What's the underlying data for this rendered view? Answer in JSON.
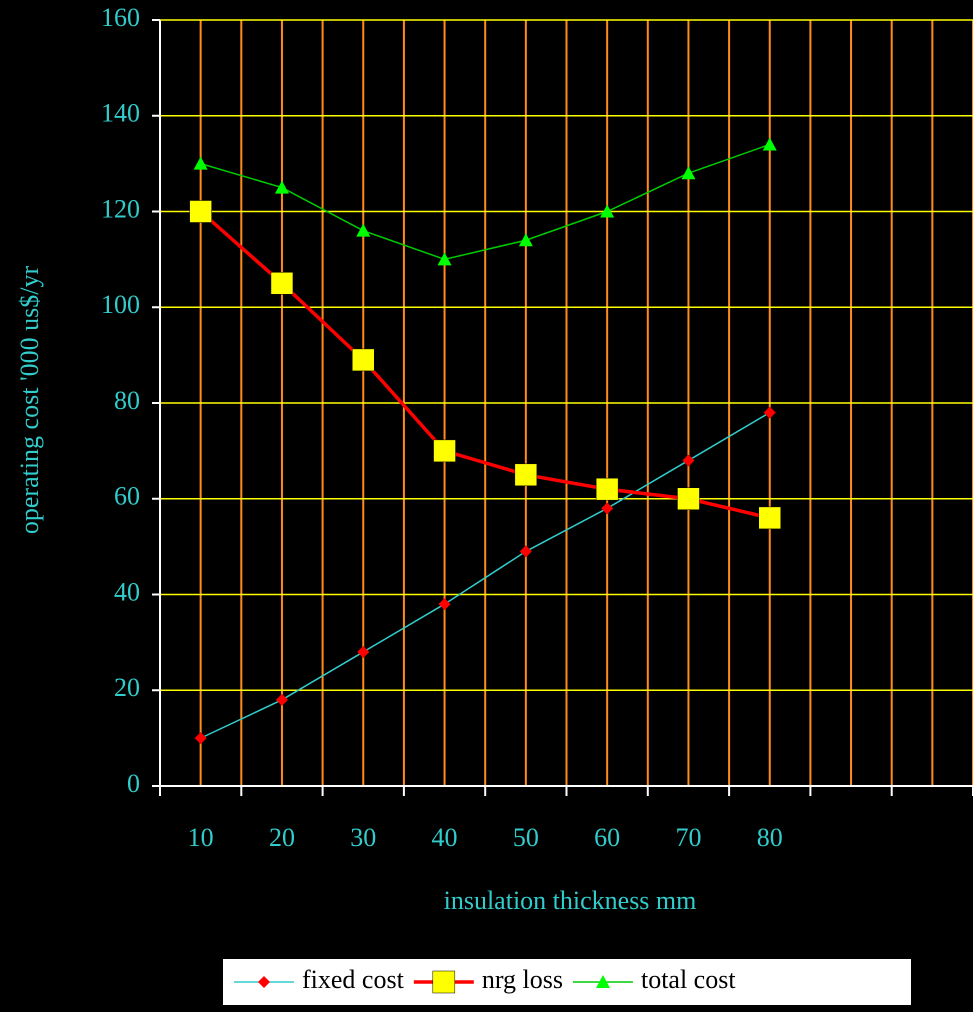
{
  "chart_data": {
    "type": "line",
    "xlabel": "insulation thickness mm",
    "ylabel": "operating cost '000 us$/yr",
    "categories": [
      "10",
      "20",
      "30",
      "40",
      "50",
      "60",
      "70",
      "80",
      null,
      null
    ],
    "series": [
      {
        "name": "fixed cost",
        "color": "#33cccc",
        "marker_color": "#ff0000",
        "marker": "diamond",
        "values": [
          10,
          18,
          28,
          38,
          49,
          58,
          68,
          78,
          null,
          null
        ]
      },
      {
        "name": "nrg loss",
        "color": "#ff0000",
        "marker_color": "#ffff00",
        "marker": "square",
        "values": [
          120,
          105,
          89,
          70,
          65,
          62,
          60,
          56,
          null,
          null
        ]
      },
      {
        "name": "total cost",
        "color": "#00cc00",
        "marker_color": "#00ff00",
        "marker": "triangle",
        "values": [
          130,
          125,
          116,
          110,
          114,
          120,
          128,
          134,
          null,
          null
        ]
      }
    ],
    "ylim": [
      0,
      160
    ],
    "yticks": [
      0,
      20,
      40,
      60,
      80,
      100,
      120,
      140,
      160
    ],
    "grid": true,
    "grid_color": "#ffff00",
    "x_grid_color": "#ff8c1a",
    "legend": "bottom"
  }
}
